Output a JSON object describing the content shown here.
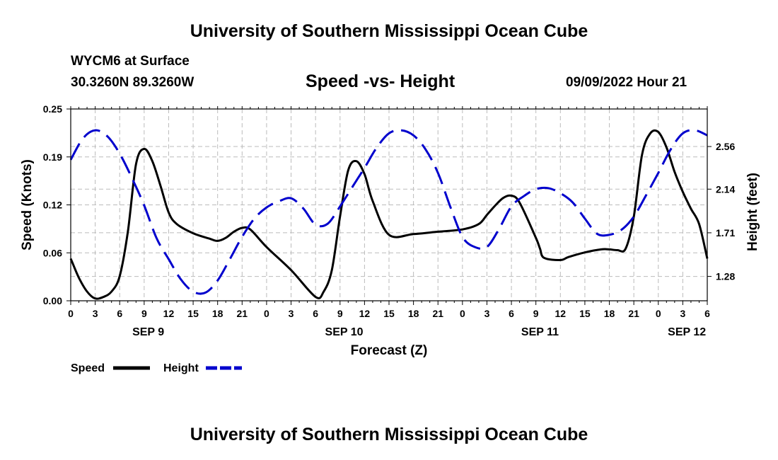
{
  "header": {
    "title": "University of Southern Mississippi Ocean Cube",
    "station": "WYCM6 at Surface",
    "coords": "30.3260N  89.3260W",
    "subtitle": "Speed -vs- Height",
    "datestamp": "09/09/2022 Hour 21"
  },
  "footer": {
    "title": "University of Southern Mississippi Ocean Cube"
  },
  "chart_data": {
    "type": "line",
    "xlabel": "Forecast (Z)",
    "ylabel_left": "Speed (Knots)",
    "ylabel_right": "Height (feet)",
    "x_range_hours": [
      0,
      78
    ],
    "ylim_left": [
      0,
      0.25
    ],
    "ylim_right": [
      1.04,
      2.93
    ],
    "left_ticks": [
      "0.00",
      "0.06",
      "0.12",
      "0.19",
      "0.25"
    ],
    "left_tick_values": [
      0,
      0.0625,
      0.125,
      0.1875,
      0.25
    ],
    "right_ticks": [
      "1.28",
      "1.71",
      "2.14",
      "2.56"
    ],
    "right_tick_values": [
      1.28,
      1.71,
      2.14,
      2.56
    ],
    "x_tick_labels": [
      "0",
      "3",
      "6",
      "9",
      "12",
      "15",
      "18",
      "21",
      "0",
      "3",
      "6",
      "9",
      "12",
      "15",
      "18",
      "21",
      "0",
      "3",
      "6",
      "9",
      "12",
      "15",
      "18",
      "21",
      "0",
      "3",
      "6"
    ],
    "day_labels": [
      {
        "label": "SEP 9",
        "hour": 9.5
      },
      {
        "label": "SEP 10",
        "hour": 33.5
      },
      {
        "label": "SEP 11",
        "hour": 57.5
      },
      {
        "label": "SEP 12",
        "hour": 75.5
      }
    ],
    "grid": true,
    "legend_position": "bottom-left",
    "series": [
      {
        "name": "Speed",
        "axis": "left",
        "color": "#000000",
        "style": "solid",
        "x": [
          0,
          1,
          2,
          3,
          4,
          5,
          6,
          7,
          8,
          9,
          10,
          11,
          12,
          13,
          15,
          17,
          18,
          19,
          20,
          21,
          22,
          24,
          27,
          30,
          31,
          32,
          33,
          34,
          35,
          36,
          37,
          39,
          42,
          45,
          48,
          50,
          51,
          52,
          53,
          54,
          55,
          57,
          57.5,
          58,
          60,
          61,
          63,
          65,
          66,
          67,
          68,
          69,
          70,
          71,
          72,
          73,
          74,
          75,
          76,
          77,
          78
        ],
        "y": [
          0.055,
          0.03,
          0.012,
          0.003,
          0.005,
          0.012,
          0.032,
          0.09,
          0.178,
          0.198,
          0.182,
          0.15,
          0.115,
          0.1,
          0.088,
          0.081,
          0.078,
          0.082,
          0.09,
          0.095,
          0.093,
          0.07,
          0.04,
          0.005,
          0.012,
          0.04,
          0.11,
          0.17,
          0.182,
          0.165,
          0.13,
          0.086,
          0.087,
          0.09,
          0.093,
          0.1,
          0.112,
          0.124,
          0.134,
          0.137,
          0.128,
          0.082,
          0.068,
          0.056,
          0.053,
          0.057,
          0.063,
          0.067,
          0.067,
          0.066,
          0.068,
          0.11,
          0.19,
          0.218,
          0.22,
          0.2,
          0.168,
          0.142,
          0.12,
          0.1,
          0.055
        ]
      },
      {
        "name": "Height",
        "axis": "right",
        "color": "#0000CD",
        "style": "dashed",
        "x": [
          0,
          1.5,
          3,
          4.5,
          6,
          7.5,
          9,
          10.5,
          12,
          13.5,
          15,
          16.5,
          18,
          19.5,
          21,
          22.5,
          24,
          25.5,
          27,
          28.5,
          30,
          31.5,
          33,
          34.5,
          36,
          37.5,
          39,
          40.5,
          42,
          43.5,
          45,
          46.5,
          48,
          49.5,
          51,
          52.5,
          54,
          55.5,
          57,
          58.5,
          60,
          61.5,
          63,
          64.5,
          66,
          67.5,
          69,
          70.5,
          72,
          73.5,
          75,
          76.5,
          78
        ],
        "y": [
          2.43,
          2.64,
          2.72,
          2.66,
          2.49,
          2.25,
          1.98,
          1.66,
          1.45,
          1.25,
          1.13,
          1.12,
          1.24,
          1.45,
          1.67,
          1.85,
          1.96,
          2.02,
          2.05,
          1.95,
          1.79,
          1.8,
          1.97,
          2.16,
          2.35,
          2.55,
          2.69,
          2.72,
          2.67,
          2.53,
          2.3,
          1.97,
          1.67,
          1.57,
          1.57,
          1.75,
          1.97,
          2.07,
          2.14,
          2.15,
          2.1,
          2.01,
          1.85,
          1.7,
          1.69,
          1.74,
          1.87,
          2.08,
          2.3,
          2.53,
          2.69,
          2.72,
          2.67
        ]
      }
    ]
  }
}
